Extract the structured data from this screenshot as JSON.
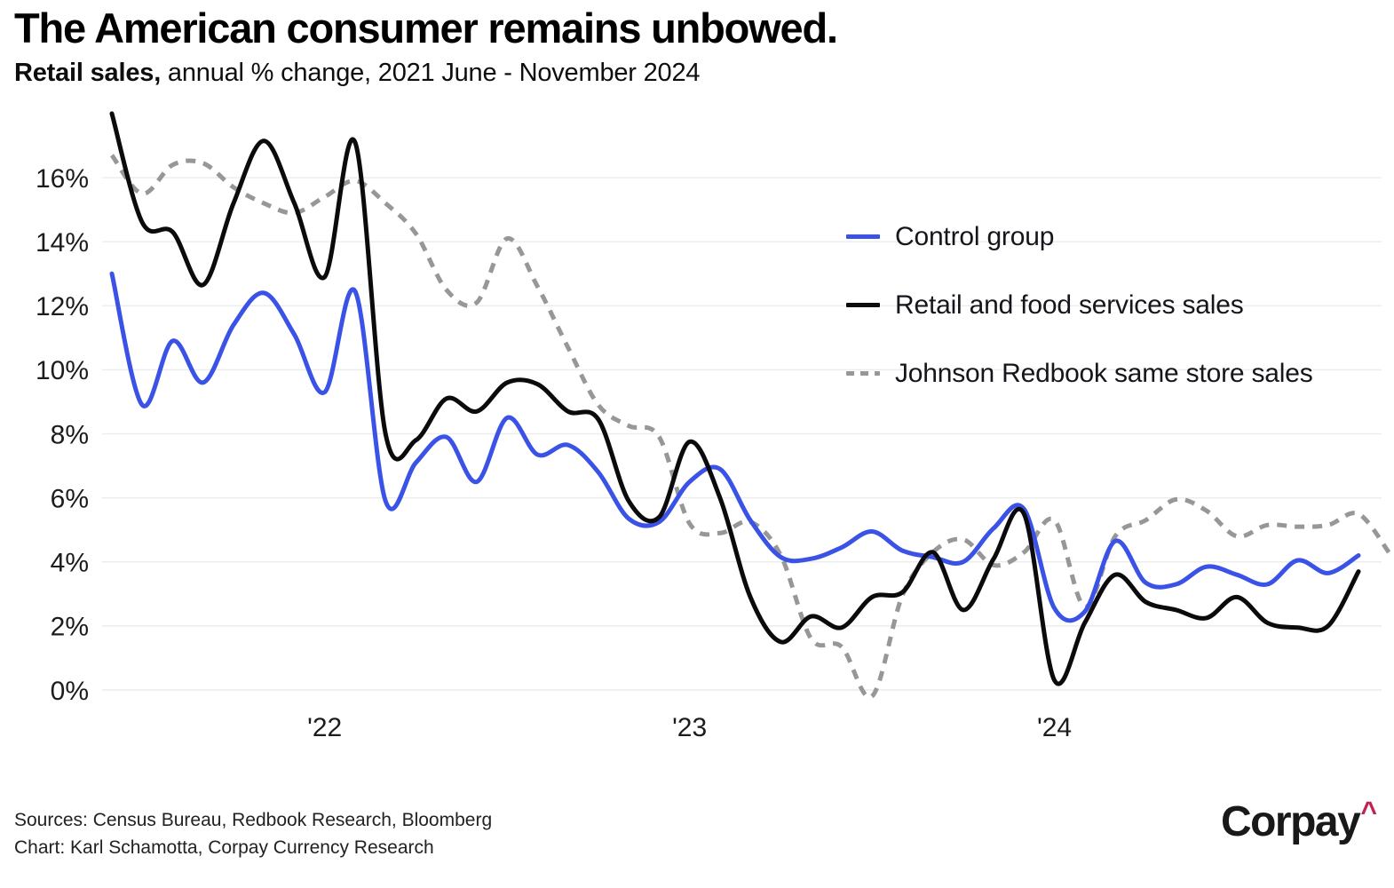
{
  "header": {
    "title": "The American consumer remains unbowed.",
    "subtitle_bold": "Retail sales,",
    "subtitle_rest": " annual % change, 2021 June - November 2024"
  },
  "legend": {
    "items": [
      {
        "label": "Control group",
        "color": "#3B52E6",
        "dash": false
      },
      {
        "label": "Retail and food services sales",
        "color": "#0B0B0E",
        "dash": false
      },
      {
        "label": "Johnson Redbook same store sales",
        "color": "#979797",
        "dash": true
      }
    ]
  },
  "footer": {
    "sources_line1": "Sources: Census Bureau, Redbook Research, Bloomberg",
    "sources_line2": "Chart: Karl Schamotta, Corpay Currency Research",
    "logo_text": "Corpay",
    "logo_caret": "^"
  },
  "chart_data": {
    "type": "line",
    "title": "The American consumer remains unbowed.",
    "subtitle": "Retail sales, annual % change, 2021 June - November 2024",
    "x_start_month": "2021-06",
    "x_end_month": "2024-11",
    "x_months_per_point": 1,
    "grid": "horizontal-only",
    "legend_position": "inside-top-right",
    "ylim": [
      -0.5,
      18
    ],
    "yticks": [
      {
        "value": 0,
        "label": "0%"
      },
      {
        "value": 2,
        "label": "2%"
      },
      {
        "value": 4,
        "label": "4%"
      },
      {
        "value": 6,
        "label": "6%"
      },
      {
        "value": 8,
        "label": "8%"
      },
      {
        "value": 10,
        "label": "10%"
      },
      {
        "value": 12,
        "label": "12%"
      },
      {
        "value": 14,
        "label": "14%"
      },
      {
        "value": 16,
        "label": "16%"
      }
    ],
    "xticks": [
      {
        "label": "'22",
        "month_index": 7
      },
      {
        "label": "'23",
        "month_index": 19
      },
      {
        "label": "'24",
        "month_index": 31
      }
    ],
    "series": [
      {
        "name": "Johnson Redbook same store sales",
        "color": "#979797",
        "style": "dashed",
        "values": [
          16.7,
          15.5,
          16.4,
          16.45,
          15.7,
          15.2,
          14.9,
          15.4,
          15.9,
          15.2,
          14.25,
          12.5,
          12.1,
          14.1,
          12.6,
          10.7,
          8.9,
          8.25,
          7.9,
          5.2,
          4.9,
          5.25,
          4.2,
          1.6,
          1.35,
          -0.2,
          2.95,
          4.3,
          4.7,
          3.9,
          4.3,
          5.3,
          2.6,
          4.8,
          5.3,
          5.95,
          5.6,
          4.8,
          5.15,
          5.1,
          5.15,
          5.5,
          4.3
        ]
      },
      {
        "name": "Control group",
        "color": "#3B52E6",
        "style": "solid",
        "values": [
          13.0,
          8.9,
          10.9,
          9.6,
          11.4,
          12.4,
          11.1,
          9.3,
          12.45,
          5.9,
          7.1,
          7.9,
          6.5,
          8.5,
          7.35,
          7.65,
          6.8,
          5.35,
          5.25,
          6.5,
          6.9,
          5.3,
          4.15,
          4.1,
          4.45,
          4.95,
          4.35,
          4.15,
          4.0,
          5.05,
          5.65,
          2.55,
          2.45,
          4.65,
          3.35,
          3.3,
          3.85,
          3.6,
          3.3,
          4.05,
          3.65,
          4.2
        ]
      },
      {
        "name": "Retail and food services sales",
        "color": "#0B0B0E",
        "style": "solid",
        "values": [
          18.0,
          14.6,
          14.3,
          12.65,
          15.2,
          17.15,
          15.2,
          12.9,
          17.1,
          8.0,
          7.8,
          9.1,
          8.7,
          9.6,
          9.55,
          8.7,
          8.45,
          5.9,
          5.4,
          7.75,
          6.0,
          2.9,
          1.5,
          2.3,
          1.95,
          2.9,
          3.05,
          4.3,
          2.5,
          4.1,
          5.5,
          0.3,
          2.1,
          3.6,
          2.75,
          2.5,
          2.25,
          2.9,
          2.1,
          1.95,
          2.0,
          3.7
        ]
      }
    ]
  }
}
